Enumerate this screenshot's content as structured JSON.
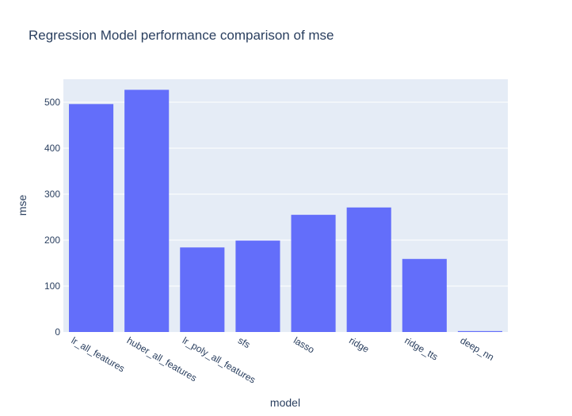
{
  "chart_data": {
    "type": "bar",
    "title": "Regression Model performance comparison of mse",
    "xlabel": "model",
    "ylabel": "mse",
    "categories": [
      "lr_all_features",
      "huber_all_features",
      "lr_poly_all_features",
      "sfs",
      "lasso",
      "ridge",
      "ridge_tts",
      "deep_nn"
    ],
    "values": [
      496,
      527,
      184,
      199,
      255,
      271,
      159,
      2
    ],
    "ylim": [
      0,
      550
    ],
    "yticks": [
      0,
      100,
      200,
      300,
      400,
      500
    ],
    "grid": true,
    "legend": "none",
    "colors": {
      "bar": "#636efa",
      "plot_bg": "#e5ecf6",
      "gridline": "#ffffff",
      "text": "#2a3f5f",
      "paper_bg": "#ffffff"
    }
  }
}
